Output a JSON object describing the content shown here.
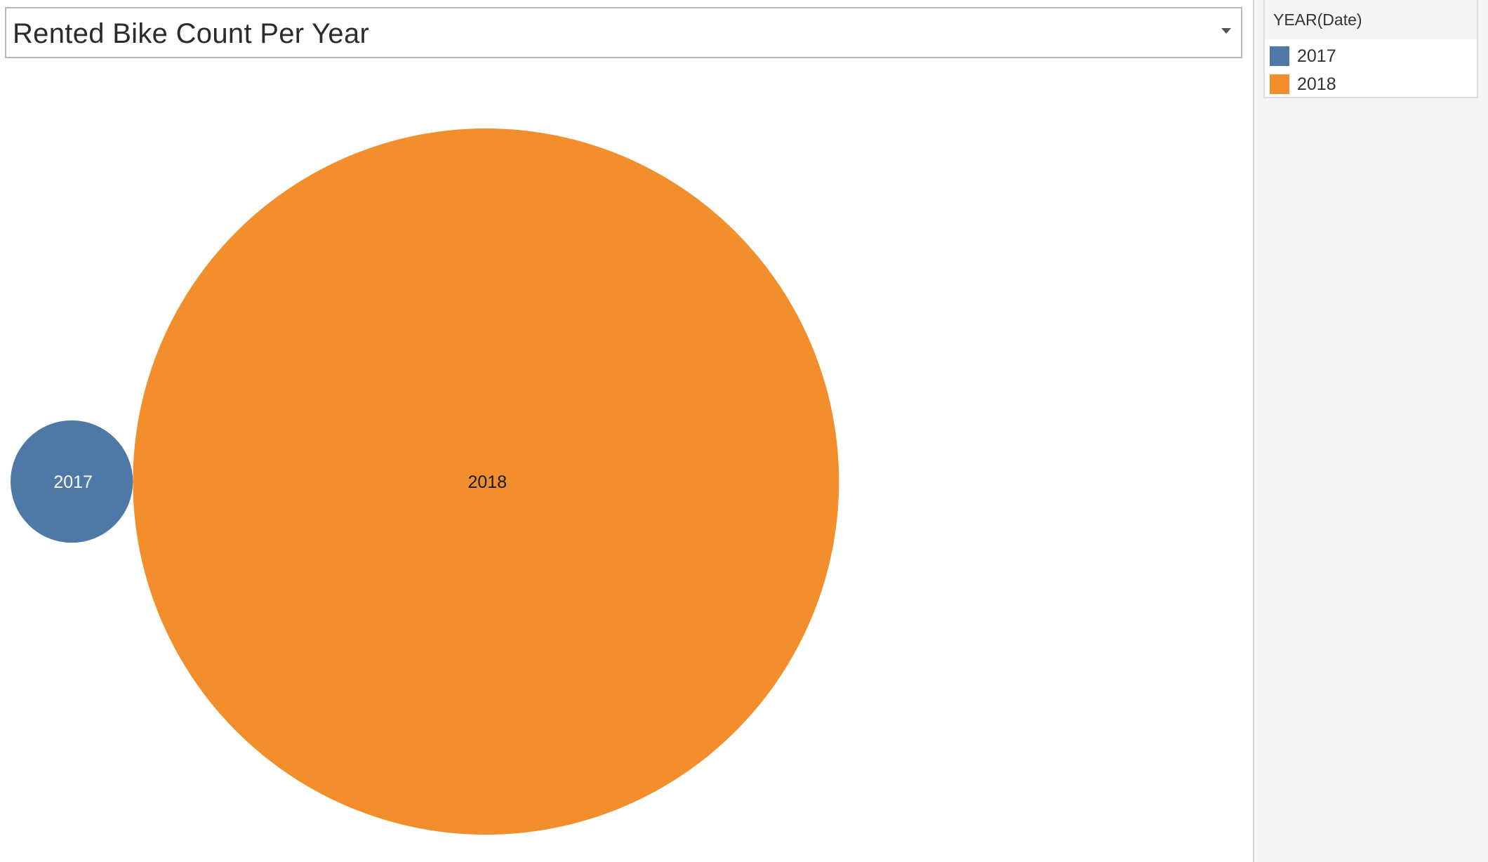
{
  "title": "Rented Bike Count Per Year",
  "legend": {
    "title": "YEAR(Date)",
    "items": [
      {
        "label": "2017",
        "color": "#4e79a7"
      },
      {
        "label": "2018",
        "color": "#f28e2b"
      }
    ]
  },
  "chart_data": {
    "type": "packed-bubble",
    "title": "Rented Bike Count Per Year",
    "categories": [
      "2017",
      "2018"
    ],
    "values": [
      185330,
      6172314
    ],
    "colors": [
      "#4e79a7",
      "#f28e2b"
    ],
    "legend_position": "right"
  }
}
